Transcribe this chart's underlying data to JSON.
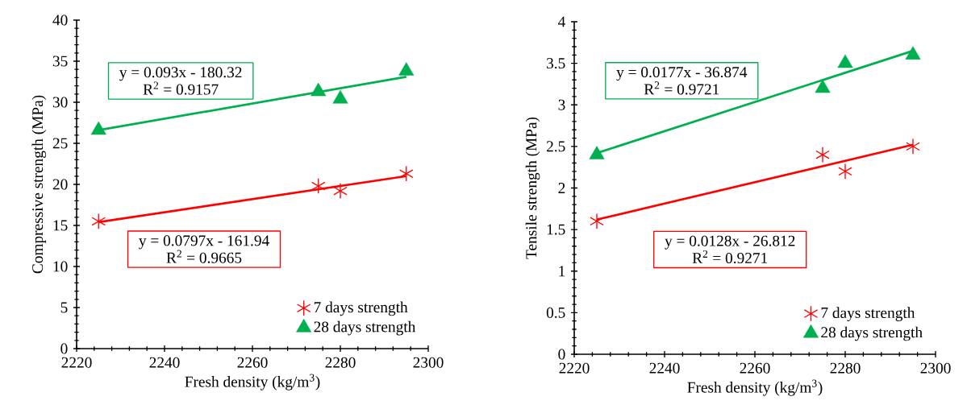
{
  "chart_data": [
    {
      "type": "scatter",
      "xlabel": "Fresh density (kg/m$^{3}$)",
      "ylabel": "Compressive strength (MPa)",
      "xlim": [
        2220,
        2300
      ],
      "xticks": [
        2220,
        2240,
        2260,
        2280,
        2300
      ],
      "ylim": [
        0,
        40
      ],
      "yticks": [
        0,
        5,
        10,
        15,
        20,
        25,
        30,
        35,
        40
      ],
      "legend": "bottom right",
      "series": [
        {
          "name": "7 days strength",
          "color": "#ff0000",
          "marker": "cross",
          "x": [
            2225,
            2275,
            2280,
            2295
          ],
          "values": [
            15.5,
            19.8,
            19.2,
            21.3
          ]
        },
        {
          "name": "28 days strength",
          "color": "#00b050",
          "marker": "triangle",
          "x": [
            2225,
            2275,
            2280,
            2295
          ],
          "values": [
            26.6,
            31.3,
            30.4,
            33.8
          ]
        },
        {
          "type": "line",
          "color": "#ff0000",
          "marker": "none",
          "x": [
            2225,
            2295
          ],
          "values": [
            15.4,
            21.0
          ]
        },
        {
          "type": "line",
          "color": "#00b050",
          "marker": "none",
          "x": [
            2225,
            2295
          ],
          "values": [
            26.6,
            33.1
          ]
        }
      ],
      "annotations": [
        "y = 0.093x - 180.32",
        "R$^{2}$ = 0.9157",
        "y = 0.0797x - 161.94",
        "R$^{2}$ = 0.9665"
      ]
    },
    {
      "type": "scatter",
      "xlabel": "Fresh density (kg/m$^{3}$)",
      "ylabel": "Tensile strength (MPa)",
      "xlim": [
        2220,
        2300
      ],
      "xticks": [
        2220,
        2240,
        2260,
        2280,
        2300
      ],
      "ylim": [
        0,
        4
      ],
      "yticks": [
        0,
        0.5,
        1,
        1.5,
        2,
        2.5,
        3,
        3.5,
        4
      ],
      "legend": "bottom right",
      "series": [
        {
          "name": "7 days strength",
          "color": "#ff0000",
          "marker": "cross",
          "x": [
            2225,
            2275,
            2280,
            2295
          ],
          "values": [
            1.6,
            2.4,
            2.2,
            2.5
          ]
        },
        {
          "name": "28 days strength",
          "color": "#00b050",
          "marker": "triangle",
          "x": [
            2225,
            2275,
            2280,
            2295
          ],
          "values": [
            2.4,
            3.2,
            3.5,
            3.6
          ]
        },
        {
          "type": "line",
          "color": "#ff0000",
          "marker": "none",
          "x": [
            2225,
            2295
          ],
          "values": [
            1.62,
            2.52
          ]
        },
        {
          "type": "line",
          "color": "#00b050",
          "marker": "none",
          "x": [
            2225,
            2295
          ],
          "values": [
            2.42,
            3.65
          ]
        }
      ],
      "annotations": [
        "y = 0.0177x - 36.874",
        "R$^{2}$ = 0.9721",
        "y = 0.0128x - 26.812",
        "R$^{2}$ = 0.9271"
      ]
    }
  ]
}
